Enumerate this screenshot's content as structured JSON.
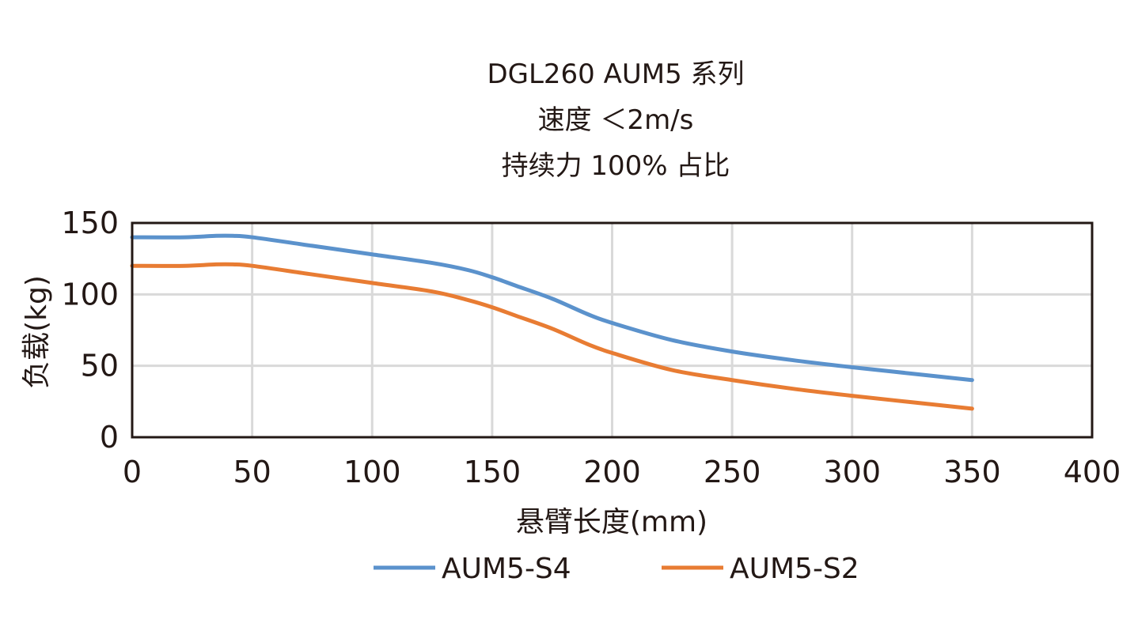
{
  "chart_data": {
    "type": "line",
    "title": [
      "DGL260 AUM5 系列",
      "速度 ＜2m/s",
      "持续力 100% 占比"
    ],
    "xlabel": "悬臂长度(mm)",
    "ylabel": "负载(kg)",
    "xlim": [
      0,
      400
    ],
    "ylim": [
      0,
      150
    ],
    "xticks": [
      0,
      50,
      100,
      150,
      200,
      250,
      300,
      350,
      400
    ],
    "yticks": [
      0,
      50,
      100,
      150
    ],
    "grid": true,
    "legend_position": "bottom",
    "series": [
      {
        "name": "AUM5-S4",
        "color": "#5B92CC",
        "x": [
          0,
          22,
          35,
          42,
          50,
          75,
          100,
          125,
          140,
          150,
          160,
          175,
          190,
          200,
          225,
          250,
          275,
          300,
          325,
          350
        ],
        "y": [
          140,
          140,
          141,
          141,
          140,
          134,
          128,
          122,
          117,
          112,
          106,
          97,
          86,
          80,
          68,
          60,
          54,
          49,
          44.5,
          40
        ]
      },
      {
        "name": "AUM5-S2",
        "color": "#E87C33",
        "x": [
          0,
          22,
          35,
          42,
          50,
          75,
          100,
          125,
          140,
          150,
          160,
          175,
          190,
          200,
          225,
          250,
          275,
          300,
          325,
          350
        ],
        "y": [
          120,
          120,
          121,
          121,
          120,
          114,
          108,
          102,
          96,
          91,
          85,
          76,
          65,
          59,
          47,
          40,
          34,
          29,
          24.5,
          20
        ]
      }
    ]
  }
}
